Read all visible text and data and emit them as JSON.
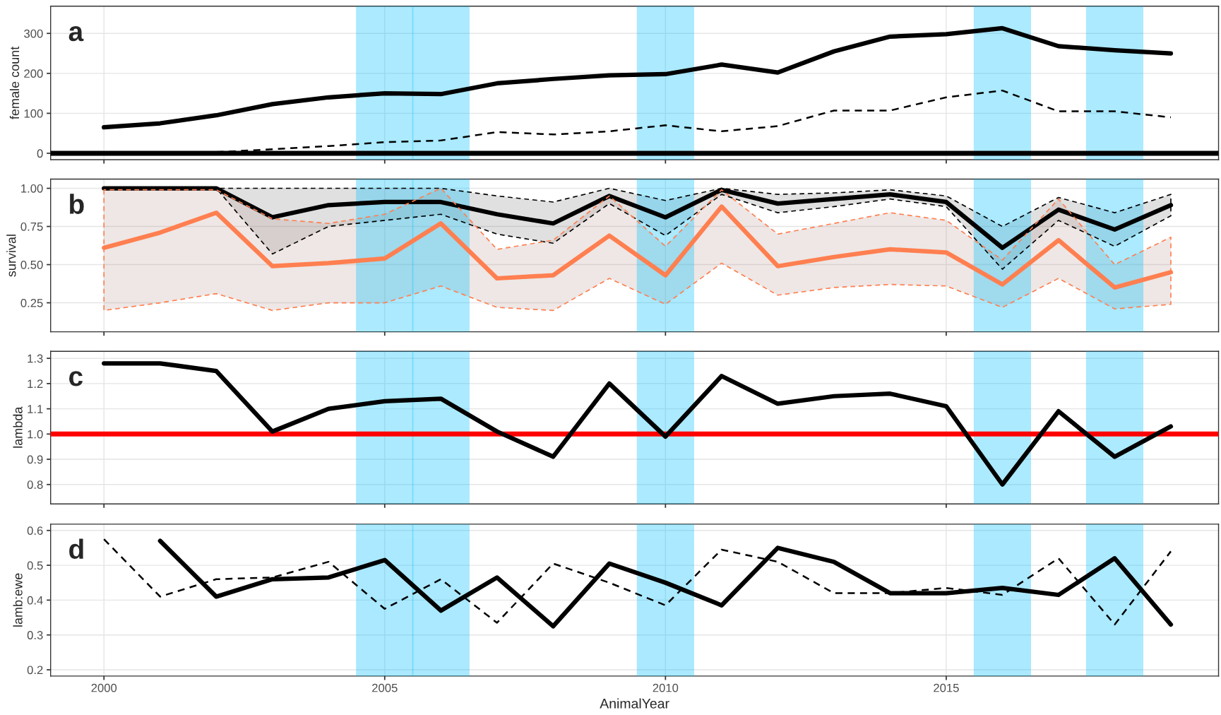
{
  "chart_data": [
    {
      "type": "line",
      "annotations": [
        "a"
      ],
      "ylabel": "female count",
      "x": [
        2000,
        2001,
        2002,
        2003,
        2004,
        2005,
        2006,
        2007,
        2008,
        2009,
        2010,
        2011,
        2012,
        2013,
        2014,
        2015,
        2016,
        2017,
        2018,
        2019
      ],
      "xlim": [
        1999.05,
        2019.85
      ],
      "xticks": [
        2000,
        2005,
        2010,
        2015
      ],
      "ylim": [
        -16,
        368
      ],
      "yticks": [
        0,
        100,
        200,
        300
      ],
      "tick_labels": "y",
      "grid": true,
      "series": [
        {
          "color": "#000000",
          "line_style": "solid",
          "values": [
            65,
            75,
            95,
            123,
            140,
            150,
            148,
            175,
            186,
            195,
            198,
            222,
            202,
            255,
            292,
            298,
            313,
            268,
            258,
            250
          ]
        },
        {
          "color": "#000000",
          "line_style": "dashed",
          "values": [
            null,
            null,
            3,
            10,
            18,
            28,
            32,
            53,
            47,
            55,
            70,
            55,
            68,
            107,
            107,
            140,
            157,
            105,
            105,
            90
          ]
        }
      ],
      "ref_lines": [
        {
          "axis": "y",
          "value": 0,
          "color": "#000000"
        }
      ],
      "bands": [
        {
          "axis": "x",
          "from": 2004.5,
          "to": 2005.5,
          "color": "#00bfff"
        },
        {
          "axis": "x",
          "from": 2005.5,
          "to": 2006.5,
          "color": "#00bfff"
        },
        {
          "axis": "x",
          "from": 2009.5,
          "to": 2010.5,
          "color": "#00bfff"
        },
        {
          "axis": "x",
          "from": 2015.5,
          "to": 2016.5,
          "color": "#00bfff"
        },
        {
          "axis": "x",
          "from": 2017.5,
          "to": 2018.5,
          "color": "#00bfff"
        }
      ]
    },
    {
      "type": "line",
      "annotations": [
        "b"
      ],
      "ylabel": "survival",
      "x": [
        2000,
        2001,
        2002,
        2003,
        2004,
        2005,
        2006,
        2007,
        2008,
        2009,
        2010,
        2011,
        2012,
        2013,
        2014,
        2015,
        2016,
        2017,
        2018,
        2019
      ],
      "xlim": [
        1999.05,
        2019.85
      ],
      "xticks": [
        2000,
        2005,
        2010,
        2015
      ],
      "ylim": [
        0.06,
        1.06
      ],
      "yticks": [
        {
          "value": 0.25,
          "label": "0.25"
        },
        {
          "value": 0.5,
          "label": "0.50"
        },
        {
          "value": 0.75,
          "label": "0.75"
        },
        {
          "value": 1.0,
          "label": "1.00"
        }
      ],
      "tick_labels": "y",
      "grid": true,
      "series": [
        {
          "color": "#000000",
          "line_style": "solid",
          "values": [
            1.0,
            1.0,
            1.0,
            0.81,
            0.89,
            0.91,
            0.91,
            0.83,
            0.77,
            0.95,
            0.81,
            0.99,
            0.9,
            0.93,
            0.96,
            0.91,
            0.61,
            0.86,
            0.73,
            0.89
          ],
          "lower": [
            1.0,
            1.0,
            1.0,
            0.57,
            0.75,
            0.79,
            0.83,
            0.7,
            0.64,
            0.9,
            0.69,
            0.96,
            0.84,
            0.88,
            0.93,
            0.88,
            0.47,
            0.79,
            0.62,
            0.82
          ],
          "upper": [
            1.0,
            1.0,
            1.0,
            1.0,
            1.0,
            1.0,
            1.0,
            0.95,
            0.91,
            1.0,
            0.92,
            1.0,
            0.96,
            0.97,
            0.99,
            0.95,
            0.75,
            0.94,
            0.84,
            0.96
          ]
        },
        {
          "color": "#ff7f50",
          "line_style": "solid",
          "values": [
            0.61,
            0.71,
            0.84,
            0.49,
            0.51,
            0.54,
            0.77,
            0.41,
            0.43,
            0.69,
            0.43,
            0.88,
            0.49,
            0.55,
            0.6,
            0.58,
            0.37,
            0.66,
            0.35,
            0.45
          ],
          "lower": [
            0.2,
            0.25,
            0.31,
            0.2,
            0.25,
            0.25,
            0.36,
            0.22,
            0.2,
            0.41,
            0.24,
            0.51,
            0.3,
            0.35,
            0.37,
            0.36,
            0.22,
            0.41,
            0.21,
            0.24
          ],
          "upper": [
            0.99,
            0.99,
            0.99,
            0.8,
            0.77,
            0.83,
            1.0,
            0.6,
            0.66,
            0.95,
            0.62,
            0.99,
            0.7,
            0.77,
            0.84,
            0.79,
            0.53,
            0.93,
            0.5,
            0.68
          ]
        }
      ],
      "bands": [
        {
          "axis": "x",
          "from": 2004.5,
          "to": 2005.5,
          "color": "#00bfff"
        },
        {
          "axis": "x",
          "from": 2005.5,
          "to": 2006.5,
          "color": "#00bfff"
        },
        {
          "axis": "x",
          "from": 2009.5,
          "to": 2010.5,
          "color": "#00bfff"
        },
        {
          "axis": "x",
          "from": 2015.5,
          "to": 2016.5,
          "color": "#00bfff"
        },
        {
          "axis": "x",
          "from": 2017.5,
          "to": 2018.5,
          "color": "#00bfff"
        }
      ]
    },
    {
      "type": "line",
      "annotations": [
        "c"
      ],
      "ylabel": "lambda",
      "x": [
        2000,
        2001,
        2002,
        2003,
        2004,
        2005,
        2006,
        2007,
        2008,
        2009,
        2010,
        2011,
        2012,
        2013,
        2014,
        2015,
        2016,
        2017,
        2018,
        2019
      ],
      "xlim": [
        1999.05,
        2019.85
      ],
      "xticks": [
        2000,
        2005,
        2010,
        2015
      ],
      "ylim": [
        0.723,
        1.328
      ],
      "yticks": [
        0.8,
        0.9,
        {
          "value": 1.0,
          "label": "1.0"
        },
        1.1,
        1.2,
        1.3
      ],
      "tick_labels": "y",
      "grid": true,
      "series": [
        {
          "color": "#000000",
          "line_style": "solid",
          "values": [
            1.28,
            1.28,
            1.25,
            1.01,
            1.1,
            1.13,
            1.14,
            1.01,
            0.91,
            1.2,
            0.99,
            1.23,
            1.12,
            1.15,
            1.16,
            1.11,
            0.8,
            1.09,
            0.91,
            1.03
          ]
        }
      ],
      "ref_lines": [
        {
          "axis": "y",
          "value": 1.0,
          "color": "#ff0000"
        }
      ],
      "bands": [
        {
          "axis": "x",
          "from": 2004.5,
          "to": 2005.5,
          "color": "#00bfff"
        },
        {
          "axis": "x",
          "from": 2005.5,
          "to": 2006.5,
          "color": "#00bfff"
        },
        {
          "axis": "x",
          "from": 2009.5,
          "to": 2010.5,
          "color": "#00bfff"
        },
        {
          "axis": "x",
          "from": 2015.5,
          "to": 2016.5,
          "color": "#00bfff"
        },
        {
          "axis": "x",
          "from": 2017.5,
          "to": 2018.5,
          "color": "#00bfff"
        }
      ]
    },
    {
      "type": "line",
      "annotations": [
        "d"
      ],
      "ylabel": "lamb:ewe",
      "xlabel": "AnimalYear",
      "x": [
        2000,
        2001,
        2002,
        2003,
        2004,
        2005,
        2006,
        2007,
        2008,
        2009,
        2010,
        2011,
        2012,
        2013,
        2014,
        2015,
        2016,
        2017,
        2018,
        2019
      ],
      "xlim": [
        1999.05,
        2019.85
      ],
      "xticks": [
        2000,
        2005,
        2010,
        2015
      ],
      "ylim": [
        0.182,
        0.618
      ],
      "yticks": [
        0.2,
        0.3,
        0.4,
        0.5,
        0.6
      ],
      "grid": true,
      "series": [
        {
          "color": "#000000",
          "line_style": "solid",
          "values": [
            null,
            0.57,
            0.41,
            0.46,
            0.465,
            0.515,
            0.37,
            0.465,
            0.325,
            0.505,
            0.45,
            0.385,
            0.55,
            0.51,
            0.42,
            0.42,
            0.435,
            0.415,
            0.52,
            0.33
          ]
        },
        {
          "color": "#000000",
          "line_style": "dashed",
          "values": [
            0.575,
            0.41,
            0.46,
            0.465,
            0.51,
            0.375,
            0.46,
            0.335,
            0.505,
            0.45,
            0.385,
            0.545,
            0.51,
            0.42,
            0.42,
            0.435,
            0.415,
            0.52,
            0.33,
            0.54
          ]
        }
      ],
      "bands": [
        {
          "axis": "x",
          "from": 2004.5,
          "to": 2005.5,
          "color": "#00bfff"
        },
        {
          "axis": "x",
          "from": 2005.5,
          "to": 2006.5,
          "color": "#00bfff"
        },
        {
          "axis": "x",
          "from": 2009.5,
          "to": 2010.5,
          "color": "#00bfff"
        },
        {
          "axis": "x",
          "from": 2015.5,
          "to": 2016.5,
          "color": "#00bfff"
        },
        {
          "axis": "x",
          "from": 2017.5,
          "to": 2018.5,
          "color": "#00bfff"
        }
      ]
    }
  ]
}
